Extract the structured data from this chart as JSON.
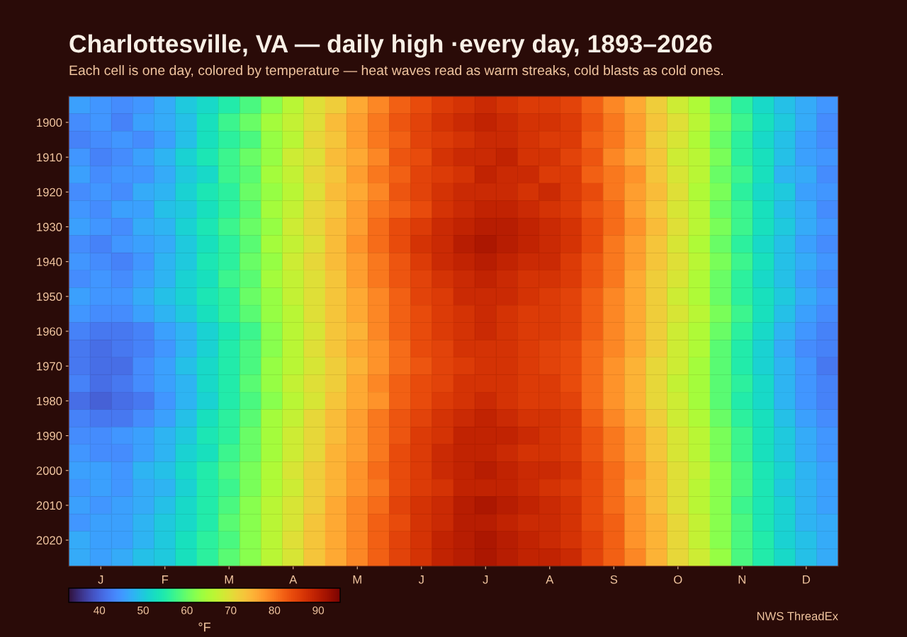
{
  "chart_data": {
    "type": "heatmap",
    "title": "Charlottesville, VA — daily high ·every day, 1893–2026",
    "subtitle": "Each cell is one day, colored by temperature — heat waves read as warm streaks, cold blasts as cold ones.",
    "categories": [
      null,
      "J",
      null,
      null,
      "F",
      null,
      null,
      "M",
      null,
      null,
      "A",
      null,
      null,
      "M",
      null,
      null,
      "J",
      null,
      null,
      "J",
      null,
      null,
      "A",
      null,
      null,
      "S",
      null,
      null,
      "O",
      null,
      null,
      "N",
      null,
      null,
      "D",
      null
    ],
    "y_categories": [
      null,
      "1900",
      null,
      "1910",
      null,
      "1920",
      null,
      "1930",
      null,
      "1940",
      null,
      "1950",
      null,
      "1960",
      null,
      "1970",
      null,
      "1980",
      null,
      "1990",
      null,
      "2000",
      null,
      "2010",
      null,
      "2020",
      null
    ],
    "cells": [
      [
        46,
        45,
        44,
        45,
        47,
        50,
        52,
        55,
        58,
        62,
        66,
        70,
        72,
        76,
        79,
        82,
        84,
        86,
        87,
        88,
        87,
        86,
        86,
        85,
        82,
        79,
        76,
        72,
        68,
        65,
        60,
        56,
        52,
        49,
        47,
        45
      ],
      [
        44,
        45,
        43,
        46,
        47,
        49,
        53,
        57,
        60,
        64,
        67,
        70,
        74,
        77,
        80,
        83,
        85,
        87,
        88,
        89,
        88,
        87,
        87,
        86,
        83,
        80,
        77,
        73,
        70,
        66,
        61,
        57,
        53,
        50,
        47,
        44
      ],
      [
        43,
        44,
        45,
        44,
        46,
        49,
        53,
        56,
        58,
        63,
        66,
        71,
        73,
        77,
        80,
        82,
        85,
        86,
        87,
        88,
        88,
        87,
        86,
        86,
        82,
        80,
        77,
        72,
        69,
        65,
        60,
        56,
        52,
        49,
        46,
        44
      ],
      [
        45,
        43,
        44,
        46,
        48,
        51,
        54,
        57,
        60,
        63,
        68,
        70,
        74,
        76,
        79,
        83,
        84,
        87,
        88,
        88,
        89,
        87,
        87,
        85,
        83,
        79,
        76,
        73,
        68,
        66,
        61,
        56,
        53,
        49,
        46,
        45
      ],
      [
        46,
        44,
        45,
        45,
        47,
        50,
        52,
        57,
        59,
        64,
        67,
        71,
        73,
        77,
        80,
        82,
        85,
        86,
        87,
        89,
        88,
        88,
        86,
        86,
        82,
        80,
        78,
        73,
        69,
        66,
        60,
        57,
        53,
        48,
        47,
        44
      ],
      [
        44,
        45,
        44,
        47,
        48,
        51,
        54,
        56,
        60,
        63,
        66,
        70,
        74,
        76,
        79,
        83,
        85,
        87,
        88,
        88,
        88,
        87,
        88,
        86,
        84,
        80,
        77,
        74,
        70,
        65,
        61,
        56,
        52,
        50,
        46,
        45
      ],
      [
        45,
        44,
        46,
        46,
        49,
        50,
        53,
        56,
        59,
        64,
        67,
        71,
        73,
        77,
        80,
        82,
        84,
        87,
        88,
        89,
        89,
        88,
        87,
        86,
        83,
        81,
        77,
        73,
        69,
        66,
        60,
        57,
        53,
        49,
        47,
        44
      ],
      [
        46,
        45,
        44,
        47,
        48,
        51,
        54,
        57,
        60,
        63,
        68,
        71,
        74,
        77,
        81,
        84,
        86,
        88,
        89,
        90,
        90,
        89,
        88,
        87,
        84,
        81,
        78,
        74,
        70,
        66,
        61,
        57,
        53,
        50,
        47,
        45
      ],
      [
        44,
        43,
        45,
        46,
        47,
        50,
        53,
        56,
        59,
        64,
        67,
        70,
        74,
        78,
        81,
        84,
        87,
        88,
        90,
        91,
        90,
        89,
        88,
        87,
        84,
        80,
        77,
        73,
        69,
        65,
        60,
        56,
        52,
        49,
        46,
        44
      ],
      [
        45,
        44,
        43,
        45,
        48,
        50,
        54,
        56,
        60,
        63,
        68,
        71,
        74,
        77,
        80,
        83,
        86,
        88,
        89,
        90,
        89,
        88,
        88,
        86,
        83,
        80,
        77,
        73,
        70,
        66,
        61,
        57,
        53,
        49,
        47,
        45
      ],
      [
        44,
        45,
        44,
        46,
        48,
        51,
        53,
        57,
        59,
        64,
        67,
        70,
        73,
        77,
        80,
        83,
        85,
        87,
        88,
        89,
        88,
        87,
        87,
        86,
        83,
        80,
        76,
        72,
        69,
        65,
        60,
        56,
        52,
        49,
        46,
        44
      ],
      [
        46,
        45,
        45,
        47,
        49,
        51,
        54,
        56,
        60,
        63,
        67,
        70,
        73,
        76,
        79,
        82,
        85,
        86,
        88,
        88,
        88,
        87,
        86,
        85,
        82,
        79,
        76,
        72,
        68,
        65,
        60,
        56,
        53,
        50,
        47,
        45
      ],
      [
        45,
        44,
        44,
        46,
        48,
        50,
        53,
        56,
        59,
        63,
        66,
        70,
        73,
        76,
        79,
        82,
        84,
        86,
        87,
        88,
        87,
        86,
        86,
        85,
        82,
        79,
        76,
        72,
        69,
        66,
        61,
        57,
        53,
        49,
        46,
        44
      ],
      [
        43,
        42,
        42,
        43,
        46,
        48,
        51,
        54,
        57,
        62,
        66,
        69,
        73,
        75,
        79,
        82,
        84,
        86,
        87,
        88,
        87,
        86,
        86,
        85,
        82,
        79,
        76,
        72,
        68,
        65,
        60,
        56,
        52,
        48,
        45,
        43
      ],
      [
        42,
        41,
        42,
        43,
        45,
        48,
        51,
        55,
        58,
        62,
        66,
        70,
        73,
        76,
        78,
        81,
        84,
        85,
        87,
        87,
        87,
        86,
        85,
        84,
        81,
        79,
        76,
        72,
        68,
        65,
        59,
        55,
        51,
        47,
        44,
        43
      ],
      [
        42,
        41,
        41,
        44,
        46,
        49,
        52,
        55,
        58,
        63,
        66,
        69,
        72,
        75,
        78,
        81,
        83,
        85,
        86,
        87,
        87,
        86,
        85,
        84,
        81,
        78,
        75,
        71,
        68,
        64,
        59,
        55,
        51,
        48,
        45,
        42
      ],
      [
        43,
        41,
        42,
        44,
        46,
        48,
        52,
        55,
        59,
        63,
        67,
        70,
        72,
        76,
        79,
        82,
        84,
        85,
        87,
        87,
        87,
        86,
        86,
        84,
        81,
        78,
        75,
        71,
        67,
        64,
        59,
        56,
        52,
        48,
        45,
        43
      ],
      [
        41,
        40,
        41,
        42,
        45,
        48,
        51,
        55,
        58,
        62,
        66,
        69,
        73,
        76,
        78,
        82,
        84,
        86,
        87,
        88,
        87,
        86,
        86,
        85,
        81,
        78,
        75,
        71,
        68,
        64,
        59,
        55,
        52,
        48,
        45,
        43
      ],
      [
        43,
        42,
        42,
        44,
        46,
        49,
        53,
        56,
        59,
        64,
        67,
        71,
        74,
        77,
        80,
        83,
        85,
        87,
        88,
        89,
        88,
        87,
        87,
        86,
        82,
        79,
        76,
        72,
        68,
        65,
        60,
        56,
        53,
        49,
        46,
        44
      ],
      [
        44,
        44,
        45,
        46,
        48,
        50,
        54,
        56,
        60,
        64,
        68,
        71,
        74,
        77,
        80,
        83,
        86,
        87,
        89,
        89,
        89,
        88,
        87,
        86,
        83,
        80,
        77,
        73,
        69,
        66,
        61,
        57,
        53,
        50,
        47,
        45
      ],
      [
        45,
        44,
        44,
        46,
        48,
        51,
        53,
        57,
        60,
        64,
        68,
        71,
        75,
        77,
        80,
        84,
        86,
        88,
        89,
        89,
        88,
        87,
        87,
        86,
        83,
        80,
        77,
        73,
        69,
        66,
        61,
        57,
        53,
        50,
        47,
        45
      ],
      [
        46,
        46,
        45,
        48,
        49,
        52,
        55,
        58,
        61,
        65,
        69,
        72,
        75,
        78,
        81,
        84,
        86,
        88,
        89,
        90,
        89,
        88,
        88,
        87,
        84,
        81,
        78,
        74,
        70,
        67,
        62,
        58,
        54,
        51,
        48,
        46
      ],
      [
        45,
        46,
        45,
        47,
        48,
        51,
        55,
        57,
        61,
        65,
        68,
        72,
        75,
        78,
        80,
        84,
        86,
        87,
        89,
        89,
        89,
        88,
        87,
        86,
        84,
        81,
        77,
        74,
        70,
        66,
        62,
        58,
        54,
        50,
        48,
        46
      ],
      [
        46,
        45,
        46,
        47,
        49,
        52,
        55,
        58,
        62,
        66,
        69,
        72,
        76,
        79,
        81,
        85,
        87,
        88,
        90,
        91,
        90,
        89,
        88,
        87,
        84,
        81,
        78,
        74,
        70,
        66,
        62,
        57,
        54,
        51,
        48,
        46
      ],
      [
        45,
        46,
        46,
        48,
        50,
        52,
        55,
        59,
        62,
        66,
        69,
        73,
        76,
        79,
        82,
        84,
        87,
        88,
        90,
        90,
        89,
        88,
        88,
        87,
        84,
        82,
        78,
        75,
        71,
        67,
        62,
        58,
        54,
        51,
        48,
        47
      ],
      [
        47,
        46,
        46,
        48,
        50,
        53,
        56,
        58,
        62,
        66,
        70,
        73,
        76,
        79,
        82,
        85,
        87,
        89,
        90,
        91,
        90,
        89,
        88,
        87,
        85,
        82,
        78,
        75,
        71,
        67,
        62,
        58,
        55,
        51,
        49,
        47
      ],
      [
        47,
        46,
        47,
        49,
        50,
        53,
        56,
        59,
        62,
        66,
        69,
        73,
        76,
        79,
        82,
        85,
        87,
        89,
        90,
        91,
        90,
        89,
        89,
        88,
        85,
        82,
        79,
        75,
        71,
        68,
        63,
        58,
        55,
        52,
        49,
        47
      ]
    ],
    "clim": [
      33,
      95
    ],
    "cticks": [
      40,
      50,
      60,
      70,
      80,
      90
    ],
    "clabel": "°F",
    "annotations": [
      "NWS ThreadEx"
    ]
  }
}
